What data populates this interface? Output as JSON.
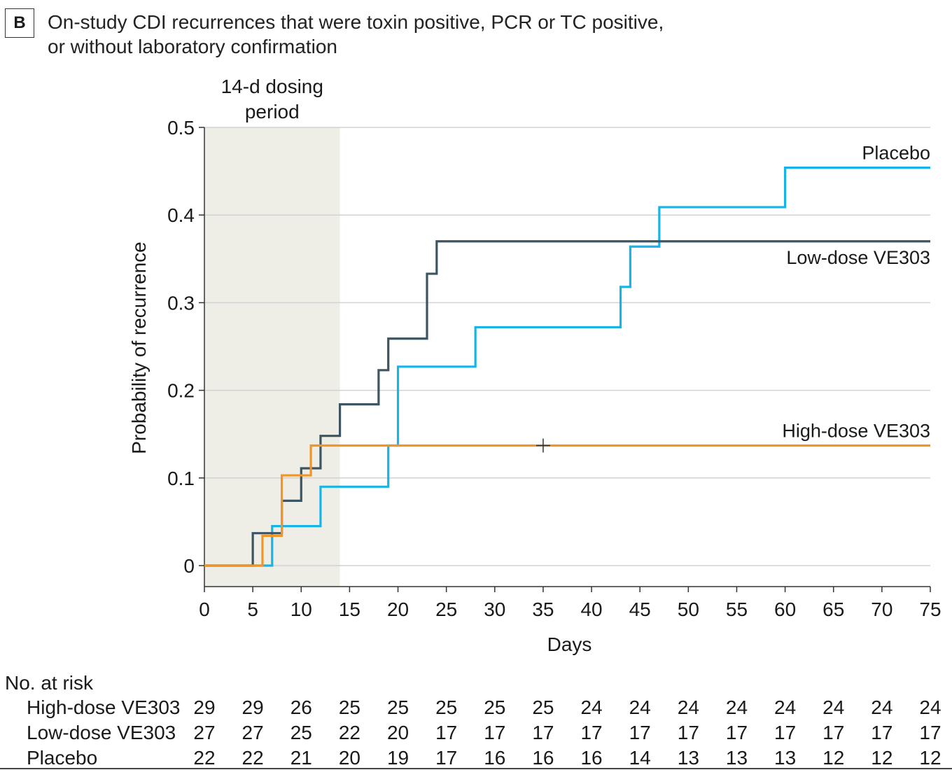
{
  "panel_label": "B",
  "title_lines": [
    "On-study CDI recurrences that were toxin positive, PCR or TC positive,",
    "or without laboratory confirmation"
  ],
  "chart_data": {
    "type": "line",
    "step": true,
    "xlabel": "Days",
    "ylabel": "Probability of recurrence",
    "xlim": [
      0,
      75
    ],
    "ylim": [
      0,
      0.5
    ],
    "xticks": [
      0,
      5,
      10,
      15,
      20,
      25,
      30,
      35,
      40,
      45,
      50,
      55,
      60,
      65,
      70,
      75
    ],
    "yticks": [
      0,
      0.1,
      0.2,
      0.3,
      0.4,
      0.5
    ],
    "ytick_labels": [
      "0",
      "0.1",
      "0.2",
      "0.3",
      "0.4",
      "0.5"
    ],
    "grid": "horizontal",
    "shaded_region": {
      "x": [
        0,
        14
      ],
      "label_lines": [
        "14-d dosing",
        "period"
      ],
      "color": "#efeee6"
    },
    "series": [
      {
        "name": "Placebo",
        "color": "#19b3e6",
        "x": [
          0,
          7,
          12,
          19,
          20,
          28,
          43,
          44,
          47,
          60,
          75
        ],
        "y": [
          0,
          0.045,
          0.09,
          0.137,
          0.227,
          0.272,
          0.318,
          0.364,
          0.409,
          0.454,
          0.454
        ]
      },
      {
        "name": "Low-dose VE303",
        "color": "#3d5461",
        "x": [
          0,
          5,
          8,
          10,
          12,
          14,
          18,
          19,
          23,
          24,
          75
        ],
        "y": [
          0,
          0.037,
          0.074,
          0.111,
          0.148,
          0.184,
          0.223,
          0.259,
          0.333,
          0.37,
          0.37
        ]
      },
      {
        "name": "High-dose VE303",
        "color": "#f29524",
        "x": [
          0,
          6,
          8,
          11,
          75
        ],
        "y": [
          0,
          0.034,
          0.103,
          0.137,
          0.137
        ],
        "censor": [
          {
            "x": 35,
            "y": 0.137
          }
        ]
      }
    ]
  },
  "risk_table": {
    "title": "No. at risk",
    "days": [
      0,
      5,
      10,
      15,
      20,
      25,
      30,
      35,
      40,
      45,
      50,
      55,
      60,
      65,
      70,
      75
    ],
    "rows": [
      {
        "label": "High-dose VE303",
        "values": [
          29,
          29,
          26,
          25,
          25,
          25,
          25,
          25,
          24,
          24,
          24,
          24,
          24,
          24,
          24,
          24
        ]
      },
      {
        "label": "Low-dose VE303",
        "values": [
          27,
          27,
          25,
          22,
          20,
          17,
          17,
          17,
          17,
          17,
          17,
          17,
          17,
          17,
          17,
          17
        ]
      },
      {
        "label": "Placebo",
        "values": [
          22,
          22,
          21,
          20,
          19,
          17,
          16,
          16,
          16,
          14,
          13,
          13,
          13,
          12,
          12,
          12
        ]
      }
    ]
  }
}
